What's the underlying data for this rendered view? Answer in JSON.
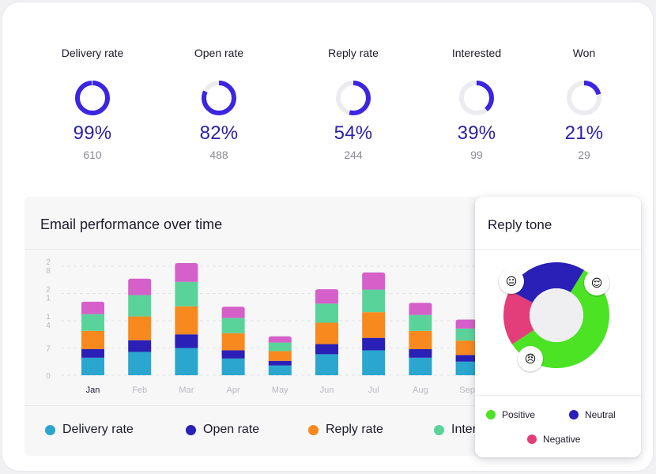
{
  "kpis": [
    {
      "label": "Delivery rate",
      "percent": 99,
      "percent_text": "99%",
      "count": "610"
    },
    {
      "label": "Open rate",
      "percent": 82,
      "percent_text": "82%",
      "count": "488"
    },
    {
      "label": "Reply rate",
      "percent": 54,
      "percent_text": "54%",
      "count": "244"
    },
    {
      "label": "Interested",
      "percent": 39,
      "percent_text": "39%",
      "count": "99"
    },
    {
      "label": "Won",
      "percent": 21,
      "percent_text": "21%",
      "count": "29"
    }
  ],
  "colors": {
    "ring_active": "#3b25e0",
    "ring_track": "#ececf0",
    "delivery": "#2aa6cf",
    "open": "#2a1fb6",
    "reply": "#f7891f",
    "interested": "#5ad39a",
    "won": "#d560c9",
    "positive": "#4be324",
    "neutral": "#2a1fb6",
    "negative": "#e33d7a"
  },
  "performance": {
    "title": "Email performance over time",
    "legend": [
      {
        "name": "Delivery rate",
        "color": "#2aa6cf"
      },
      {
        "name": "Open rate",
        "color": "#2a1fb6"
      },
      {
        "name": "Reply rate",
        "color": "#f7891f"
      },
      {
        "name": "Interested",
        "color": "#5ad39a"
      }
    ]
  },
  "chart_data": {
    "type": "bar",
    "stacked": true,
    "title": "Email performance over time",
    "categories": [
      "Jan",
      "Feb",
      "Mar",
      "Apr",
      "May",
      "Jun",
      "Jul",
      "Aug",
      "Sep"
    ],
    "selected_category": "Jan",
    "y_tick_labels": [
      "0",
      "7",
      "1\n4",
      "2\n1",
      "2\n8"
    ],
    "y_ticks": [
      0,
      7,
      14,
      21,
      28
    ],
    "ylim": [
      0,
      28
    ],
    "grid": true,
    "legend_position": "bottom",
    "series": [
      {
        "name": "Delivery rate",
        "color": "#2aa6cf",
        "values": [
          4.5,
          6.0,
          7.0,
          4.3,
          2.5,
          5.4,
          6.4,
          4.5,
          3.5
        ]
      },
      {
        "name": "Open rate",
        "color": "#2a1fb6",
        "values": [
          2.2,
          3.0,
          3.5,
          2.1,
          1.2,
          2.6,
          3.2,
          2.2,
          1.7
        ]
      },
      {
        "name": "Reply rate",
        "color": "#f7891f",
        "values": [
          4.7,
          6.1,
          7.2,
          4.4,
          2.5,
          5.5,
          6.6,
          4.7,
          3.7
        ]
      },
      {
        "name": "Interested",
        "color": "#5ad39a",
        "values": [
          4.3,
          5.5,
          6.3,
          3.9,
          2.2,
          4.9,
          5.8,
          4.1,
          3.1
        ]
      },
      {
        "name": "Won",
        "color": "#d560c9",
        "values": [
          3.2,
          4.2,
          4.8,
          2.9,
          1.6,
          3.7,
          4.4,
          3.1,
          2.3
        ]
      }
    ]
  },
  "tone": {
    "title": "Reply tone",
    "segments": [
      {
        "name": "Positive",
        "value": 57,
        "color": "#4be324"
      },
      {
        "name": "Negative",
        "value": 17,
        "color": "#e33d7a"
      },
      {
        "name": "Neutral",
        "value": 26,
        "color": "#2a1fb6"
      }
    ],
    "emojis": {
      "positive": "😌",
      "neutral": "😐",
      "negative": "😠"
    },
    "legend": [
      {
        "name": "Positive",
        "color": "#4be324"
      },
      {
        "name": "Neutral",
        "color": "#2a1fb6"
      },
      {
        "name": "Negative",
        "color": "#e33d7a"
      }
    ]
  }
}
